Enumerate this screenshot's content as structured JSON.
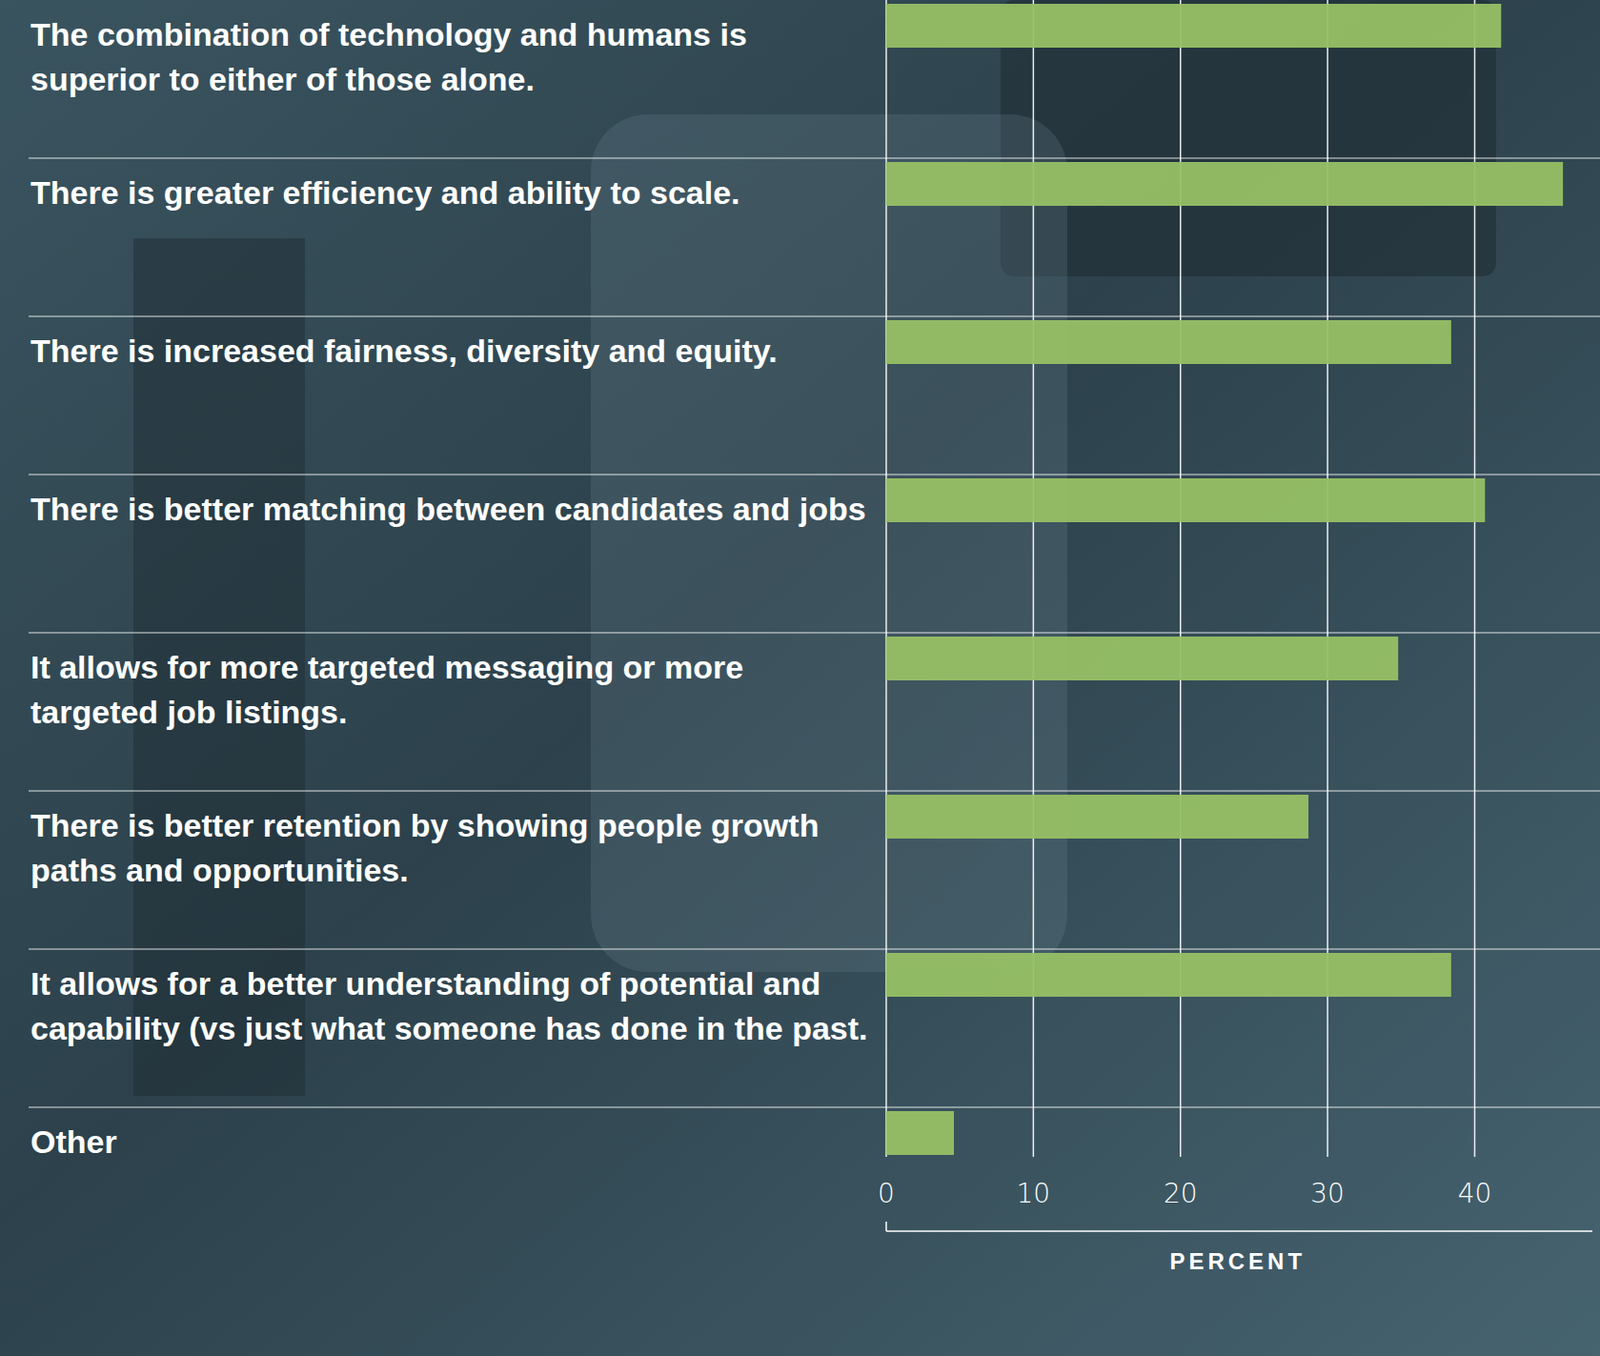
{
  "chart_data": {
    "type": "bar",
    "orientation": "horizontal",
    "categories": [
      "The combination of technology and humans is superior to either of those alone.",
      "There is greater efficiency and ability to scale.",
      "There is increased fairness, diversity and equity.",
      "There is better matching between candidates and jobs",
      "It allows for more targeted messaging or more targeted job listings.",
      "There is better retention by showing people growth paths and opportunities.",
      "It allows for a better understanding of potential and capability (vs just what someone has done in the past.",
      "Other"
    ],
    "values": [
      41.8,
      46.0,
      38.4,
      40.7,
      34.8,
      28.7,
      38.4,
      4.6
    ],
    "color": "#97c065",
    "xlim": [
      0,
      48
    ],
    "xticks": [
      0,
      10,
      20,
      30,
      40
    ],
    "xlabel": "PERCENT",
    "grid": true
  }
}
